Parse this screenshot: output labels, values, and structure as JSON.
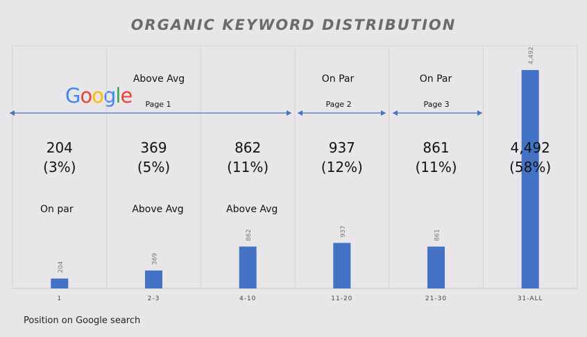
{
  "chart_data": {
    "type": "bar",
    "title": "ORGANIC KEYWORD DISTRIBUTION",
    "xlabel": "Position on Google search",
    "ylabel": "",
    "categories": [
      "1",
      "2-3",
      "4-10",
      "11-20",
      "21-30",
      "31-ALL"
    ],
    "values": [
      204,
      369,
      862,
      937,
      861,
      4492
    ],
    "value_labels": [
      "204",
      "369",
      "862",
      "937",
      "861",
      "4,492"
    ],
    "center_counts": [
      "204",
      "369",
      "862",
      "937",
      "861",
      "4,492"
    ],
    "center_percents": [
      "(3%)",
      "(5%)",
      "(11%)",
      "(12%)",
      "(11%)",
      "(58%)"
    ],
    "bottom_ratings": [
      "On par",
      "Above Avg",
      "Above Avg"
    ],
    "top_ratings": [
      "Above Avg",
      "On Par",
      "On Par"
    ],
    "pages": [
      "Page 1",
      "Page 2",
      "Page 3"
    ],
    "ylim": [
      0,
      4492
    ],
    "grid": false,
    "bar_color": "#4472c4",
    "arrow_color": "#4472c4"
  },
  "logo": {
    "text": "Google",
    "letters": [
      "G",
      "o",
      "o",
      "g",
      "l",
      "e"
    ],
    "colors": [
      "#4285f4",
      "#ea4335",
      "#fbbc05",
      "#4285f4",
      "#34a853",
      "#ea4335"
    ]
  }
}
